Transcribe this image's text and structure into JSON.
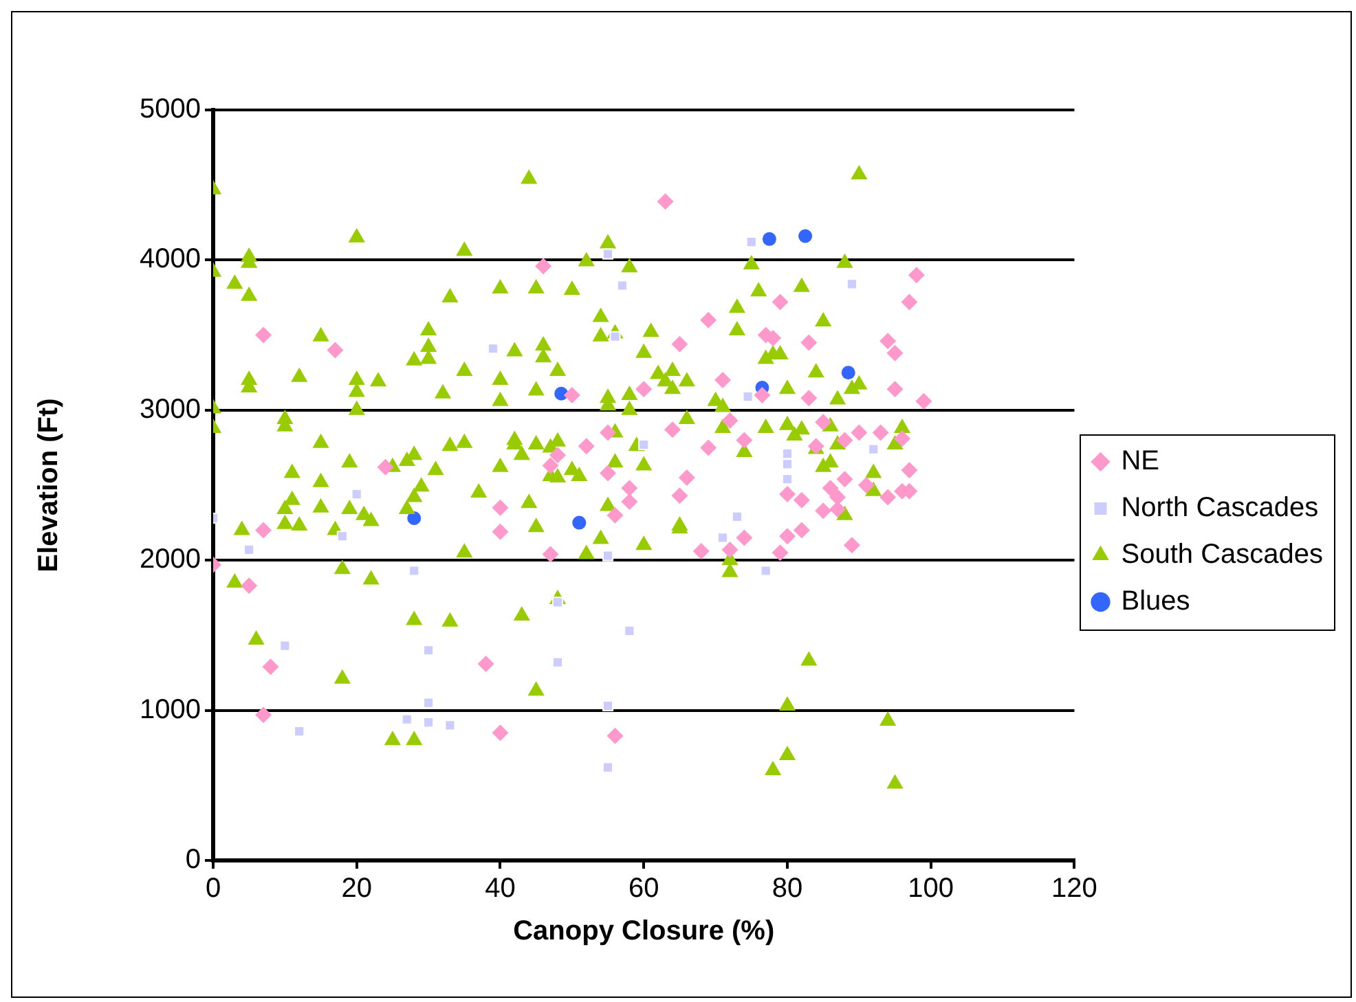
{
  "chart_data": {
    "type": "scatter",
    "xlabel": "Canopy Closure (%)",
    "ylabel": "Elevation (Ft)",
    "xlim": [
      0,
      120
    ],
    "xticks": [
      0,
      20,
      40,
      60,
      80,
      100,
      120
    ],
    "ylim": [
      0,
      5000
    ],
    "yticks": [
      0,
      1000,
      2000,
      3000,
      4000,
      5000
    ],
    "grid": "y",
    "legend": "right",
    "series": [
      {
        "name": "NE",
        "color": "#ff99cc",
        "marker": "diamond",
        "x": [
          0,
          5,
          7,
          7,
          7,
          8,
          17,
          24,
          38,
          40,
          40,
          40,
          46,
          47,
          47,
          48,
          50,
          52,
          55,
          55,
          56,
          56,
          58,
          58,
          60,
          63,
          64,
          65,
          65,
          66,
          68,
          69,
          69,
          71,
          72,
          72,
          74,
          74,
          76.5,
          77,
          78,
          79,
          79,
          80,
          80,
          82,
          82,
          83,
          83,
          84,
          85,
          85,
          86,
          87,
          87,
          88,
          88,
          89,
          90,
          91,
          93,
          94,
          94,
          95,
          95,
          96,
          96,
          97,
          97,
          98,
          99,
          97
        ],
        "values": [
          1970,
          1830,
          3500,
          2200,
          970,
          1290,
          3400,
          2620,
          1310,
          2350,
          2190,
          850,
          3960,
          2040,
          2630,
          2700,
          3100,
          2760,
          2580,
          2850,
          830,
          2300,
          2480,
          2390,
          3140,
          4390,
          2870,
          2430,
          3440,
          2550,
          2060,
          3600,
          2750,
          3200,
          2070,
          2930,
          2150,
          2800,
          3100,
          3500,
          3480,
          2050,
          3720,
          2440,
          2160,
          2400,
          2200,
          3080,
          3450,
          2760,
          2920,
          2330,
          2480,
          2420,
          2340,
          2800,
          2540,
          2100,
          2850,
          2500,
          2850,
          2420,
          3460,
          3380,
          3140,
          2810,
          2460,
          3720,
          2600,
          3900,
          3060,
          2460
        ]
      },
      {
        "name": "North Cascades",
        "color": "#ccccff",
        "marker": "square",
        "x": [
          0,
          5,
          10,
          12,
          18,
          20,
          27,
          28,
          30,
          30,
          30,
          33,
          39,
          48,
          48,
          55,
          55,
          55,
          55,
          56,
          57,
          58,
          60,
          71,
          73,
          75,
          74.5,
          77,
          80,
          80,
          80,
          89,
          92
        ],
        "values": [
          2280,
          2070,
          1430,
          860,
          2160,
          2440,
          940,
          1930,
          1400,
          1050,
          920,
          900,
          3410,
          1720,
          1320,
          4040,
          2030,
          1030,
          620,
          3490,
          3830,
          1530,
          2770,
          2150,
          2290,
          4120,
          3090,
          1930,
          2640,
          2540,
          2710,
          3840,
          2740
        ]
      },
      {
        "name": "South Cascades",
        "color": "#99cc00",
        "marker": "triangle",
        "x": [
          0,
          0,
          0,
          0,
          3,
          4,
          3,
          5,
          5,
          5,
          5,
          5,
          6,
          10,
          10,
          10,
          10,
          11,
          11,
          12,
          12,
          15,
          15,
          15,
          15,
          17,
          18,
          18,
          19,
          19,
          20,
          20,
          20,
          20,
          21,
          22,
          22,
          23,
          25,
          25,
          27,
          27,
          28,
          28,
          28,
          28,
          28,
          29,
          30,
          30,
          30,
          31,
          32,
          33,
          33,
          33,
          35,
          35,
          35,
          35,
          37,
          40,
          40,
          40,
          40,
          42,
          42,
          42,
          43,
          43,
          44,
          44,
          45,
          45,
          45,
          45,
          45,
          46,
          46,
          47,
          47,
          48,
          48,
          48,
          48,
          50,
          50,
          51,
          52,
          52,
          54,
          54,
          54,
          55,
          55,
          55,
          55,
          56,
          56,
          56,
          58,
          58,
          58,
          59,
          60,
          60,
          60,
          61,
          62,
          63,
          64,
          64,
          65,
          65,
          66,
          66,
          70,
          71,
          71,
          72,
          72,
          73,
          73,
          74,
          75,
          76,
          77,
          77,
          78,
          78,
          79,
          80,
          80,
          80,
          80,
          81,
          82,
          82,
          83,
          84,
          84,
          85,
          85,
          86,
          86,
          87,
          87,
          88,
          88,
          89,
          90,
          90,
          92,
          92,
          94,
          95,
          95,
          96
        ],
        "values": [
          4470,
          3920,
          3010,
          2880,
          3840,
          2200,
          1850,
          4020,
          3980,
          3760,
          3200,
          3150,
          1470,
          2890,
          2940,
          2340,
          2240,
          2580,
          2400,
          2230,
          3220,
          3490,
          2780,
          2350,
          2520,
          2200,
          1940,
          1210,
          2650,
          2340,
          4150,
          3200,
          3120,
          3000,
          2300,
          2260,
          1870,
          3190,
          2620,
          800,
          2340,
          2660,
          1600,
          800,
          2700,
          3330,
          2420,
          2490,
          3530,
          3420,
          3340,
          2600,
          3110,
          3750,
          2760,
          1590,
          4060,
          3260,
          2780,
          2050,
          2450,
          3810,
          3200,
          3060,
          2620,
          2800,
          2770,
          3390,
          2700,
          1630,
          4540,
          2380,
          3810,
          3130,
          2770,
          2220,
          1130,
          3430,
          3350,
          2750,
          2560,
          2550,
          2790,
          3260,
          1740,
          3800,
          2600,
          2560,
          2040,
          3990,
          3620,
          3490,
          2140,
          4110,
          3080,
          3030,
          2360,
          2650,
          2850,
          3510,
          3950,
          3100,
          3000,
          2760,
          3380,
          2100,
          2630,
          3520,
          3240,
          3190,
          3260,
          3140,
          2230,
          2210,
          2940,
          3190,
          3060,
          2880,
          3020,
          1920,
          2000,
          3680,
          3530,
          2720,
          3970,
          3790,
          3340,
          2880,
          3370,
          600,
          3370,
          1030,
          700,
          3140,
          2900,
          2830,
          3820,
          2870,
          1330,
          2740,
          3250,
          3590,
          2620,
          2650,
          2890,
          3070,
          2770,
          3980,
          2300,
          3140,
          4570,
          3170,
          2460,
          2580,
          930,
          510,
          2770,
          2880
        ]
      },
      {
        "name": "Blues",
        "color": "#3366ff",
        "marker": "circle",
        "x": [
          28,
          48.5,
          51,
          77.5,
          82.5,
          76.5,
          88.5
        ],
        "values": [
          2280,
          3110,
          2250,
          4140,
          4160,
          3150,
          3250
        ]
      }
    ]
  }
}
